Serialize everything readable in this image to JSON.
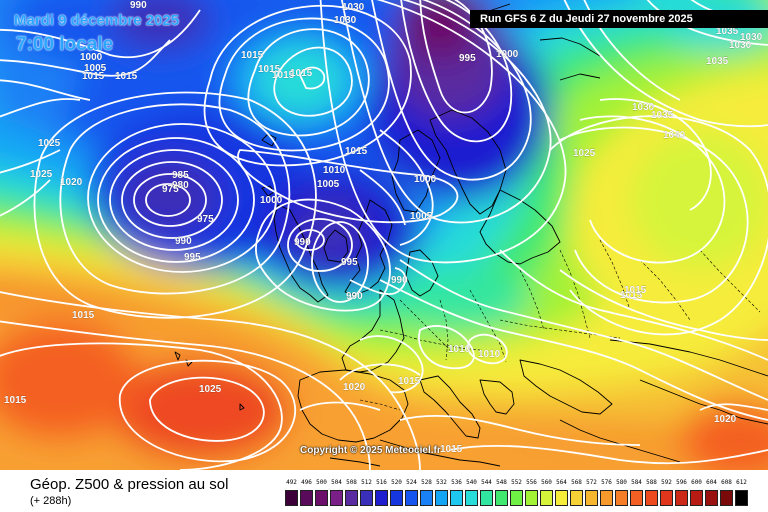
{
  "header": {
    "date": "Mardi 9 décembre 2025",
    "time": "7:00 locale"
  },
  "run_info": "Run GFS 6 Z du Jeudi 27 novembre 2025",
  "copyright": "Copyright © 2025 Meteociel.fr",
  "footer": {
    "title": "Géop. Z500 & pression au sol",
    "lead": "(+ 288h)"
  },
  "legend": {
    "values": [
      492,
      496,
      500,
      504,
      508,
      512,
      516,
      520,
      524,
      528,
      532,
      536,
      540,
      544,
      548,
      552,
      556,
      560,
      564,
      568,
      572,
      576,
      580,
      584,
      588,
      592,
      596,
      600,
      604,
      608,
      612
    ],
    "colors": [
      "#3c0038",
      "#5a0a5a",
      "#6b0f6b",
      "#7a1f87",
      "#5a2aa0",
      "#3a2fb8",
      "#1f1fd0",
      "#1636e0",
      "#1656ee",
      "#1a80f5",
      "#14a6f5",
      "#1ec8ef",
      "#28dcd8",
      "#30e6a0",
      "#40e870",
      "#6ef044",
      "#a2f236",
      "#d6f43a",
      "#f6ec3a",
      "#f6d236",
      "#f6b630",
      "#f69a2c",
      "#f67e28",
      "#f46024",
      "#ee4a20",
      "#e0361c",
      "#cc2818",
      "#b61c14",
      "#9a1210",
      "#7a0a0a",
      "#000000"
    ]
  },
  "isobar_labels": [
    {
      "text": "990"
    },
    {
      "text": "1030"
    },
    {
      "text": "1030"
    },
    {
      "text": "1000"
    },
    {
      "text": "1005"
    },
    {
      "text": "1015"
    },
    {
      "text": "1015"
    },
    {
      "text": "1015"
    },
    {
      "text": "1015"
    },
    {
      "text": "1015"
    },
    {
      "text": "1015"
    },
    {
      "text": "995"
    },
    {
      "text": "1000"
    },
    {
      "text": "1035"
    },
    {
      "text": "1030"
    },
    {
      "text": "1030"
    },
    {
      "text": "1035"
    },
    {
      "text": "1030"
    },
    {
      "text": "1035"
    },
    {
      "text": "1040"
    },
    {
      "text": "1025"
    },
    {
      "text": "1025"
    },
    {
      "text": "1025"
    },
    {
      "text": "1020"
    },
    {
      "text": "985"
    },
    {
      "text": "980"
    },
    {
      "text": "975"
    },
    {
      "text": "975"
    },
    {
      "text": "990"
    },
    {
      "text": "995"
    },
    {
      "text": "1000"
    },
    {
      "text": "1005"
    },
    {
      "text": "1010"
    },
    {
      "text": "1015"
    },
    {
      "text": "1000"
    },
    {
      "text": "1005"
    },
    {
      "text": "990"
    },
    {
      "text": "995"
    },
    {
      "text": "990"
    },
    {
      "text": "990"
    },
    {
      "text": "1015"
    },
    {
      "text": "1015"
    },
    {
      "text": "1025"
    },
    {
      "text": "1015"
    },
    {
      "text": "1020"
    },
    {
      "text": "1015"
    },
    {
      "text": "1010"
    },
    {
      "text": "1010"
    },
    {
      "text": "1015"
    },
    {
      "text": "1015"
    },
    {
      "text": "1020"
    }
  ]
}
